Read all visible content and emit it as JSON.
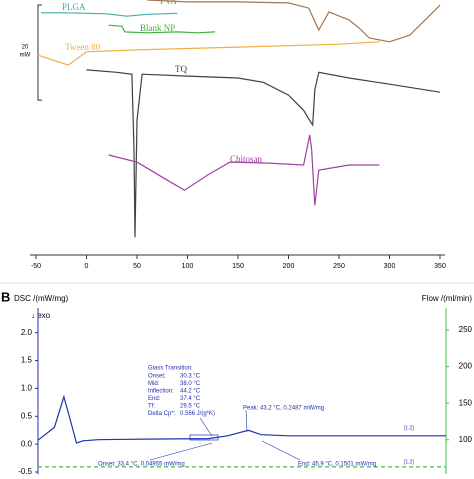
{
  "chart_data": [
    {
      "type": "line",
      "xlim": [
        -50,
        350
      ],
      "xticks": [
        -50,
        0,
        50,
        100,
        150,
        200,
        250,
        300,
        350
      ],
      "ylim": [
        -49,
        4
      ],
      "scale_bar": {
        "value": 20,
        "unit": "mW"
      },
      "series": [
        {
          "name": "PLGA",
          "color": "#3bb0a0",
          "x": [
            -45,
            -20,
            0,
            20,
            40,
            60,
            90
          ],
          "values": [
            1.3,
            1.3,
            1.2,
            1.1,
            0.6,
            1.0,
            1.2
          ]
        },
        {
          "name": "PVA",
          "color": "#a07850",
          "x": [
            60,
            100,
            150,
            200,
            220,
            230,
            240,
            260,
            270,
            280,
            300,
            320,
            340,
            350
          ],
          "values": [
            4.0,
            3.6,
            3.6,
            3.4,
            2.3,
            -2.3,
            1.5,
            -0.2,
            -1.9,
            -4.0,
            -4.8,
            -3.4,
            0.8,
            2.9
          ]
        },
        {
          "name": "Blank NP",
          "color": "#40b040",
          "x": [
            22,
            35,
            38,
            60,
            90,
            110,
            127
          ],
          "values": [
            -1.3,
            -1.5,
            -2.7,
            -2.9,
            -2.7,
            -2.9,
            -2.7
          ]
        },
        {
          "name": "Tween 80",
          "color": "#f0b040",
          "x": [
            -48,
            -18,
            0,
            50,
            150,
            250,
            290
          ],
          "values": [
            -7.6,
            -9.7,
            -6.9,
            -6.5,
            -5.9,
            -5.3,
            -4.8
          ]
        },
        {
          "name": "TQ",
          "color": "#404040",
          "x": [
            0,
            30,
            45,
            47,
            48,
            50,
            55,
            100,
            150,
            175,
            200,
            215,
            222,
            224,
            226,
            230,
            260,
            300,
            350
          ],
          "values": [
            -10.7,
            -11.2,
            -11.6,
            -27.6,
            -45.9,
            -21.3,
            -11.6,
            -12.0,
            -12.4,
            -13.3,
            -16.0,
            -19.2,
            -21.7,
            -22.3,
            -14.9,
            -11.2,
            -12.4,
            -13.7,
            -15.4
          ]
        },
        {
          "name": "Chitosan",
          "color": "#a040a0",
          "x": [
            22,
            50,
            80,
            97,
            120,
            142,
            180,
            215,
            221,
            223,
            226,
            230,
            260,
            290
          ],
          "values": [
            -28.6,
            -30.1,
            -33.9,
            -36.0,
            -32.8,
            -30.1,
            -30.3,
            -30.7,
            -24.4,
            -27.6,
            -39.2,
            -31.8,
            -30.7,
            -30.7
          ]
        }
      ]
    },
    {
      "type": "line",
      "panel_label": "B",
      "y_label": "DSC /(mW/mg)",
      "exo_label": "↓ exo",
      "y2_label": "Flow /(ml/min)",
      "xlim": [
        -30,
        112
      ],
      "ylim": [
        -0.5,
        2.3
      ],
      "yticks": [
        {
          "value": 2,
          "label": "2.0"
        },
        1.5,
        {
          "value": 1,
          "label": "1.0"
        },
        0.5,
        {
          "value": 0,
          "label": "0.0"
        },
        -0.5
      ],
      "y2lim": [
        56,
        269
      ],
      "y2ticks": [
        100,
        150,
        200,
        250
      ],
      "series": [
        {
          "color": "#2030b0",
          "x": [
            -30,
            -24.3,
            -21,
            -18.6,
            -16.6,
            -14.3,
            -9.2,
            7.5,
            29.3,
            36,
            43.2,
            47.7,
            57.2,
            112
          ],
          "values": [
            0.07,
            0.3,
            0.85,
            0.4,
            0.02,
            0.06,
            0.08,
            0.09,
            0.1,
            0.15,
            0.2487,
            0.17,
            0.15,
            0.15
          ]
        },
        {
          "color": "#40c040",
          "axis": "y2",
          "dashed": true,
          "x": [
            -30,
            112
          ],
          "values": [
            63,
            63
          ]
        }
      ],
      "glass_transition": {
        "title": "Glass Transition:",
        "rows": [
          [
            "Onset:",
            "30.3 °C"
          ],
          [
            "Mid:",
            "38.0 °C"
          ],
          [
            "Inflection:",
            "44.2 °C"
          ],
          [
            "End:",
            "37.4 °C"
          ],
          [
            "Tf:",
            "29.5 °C"
          ],
          [
            "Delta Cp*:",
            "0.566 J/(g*K)"
          ]
        ]
      },
      "peak": "Peak: 43.2 °C, 0.2487 mW/mg",
      "onset": "Onset: 33.4 °C, 0.04955 mW/mg",
      "end": "End: 45.9 °C, 0.1501 mW/mg",
      "segment_labels": [
        "[1.2]",
        "[1.2]"
      ]
    }
  ]
}
